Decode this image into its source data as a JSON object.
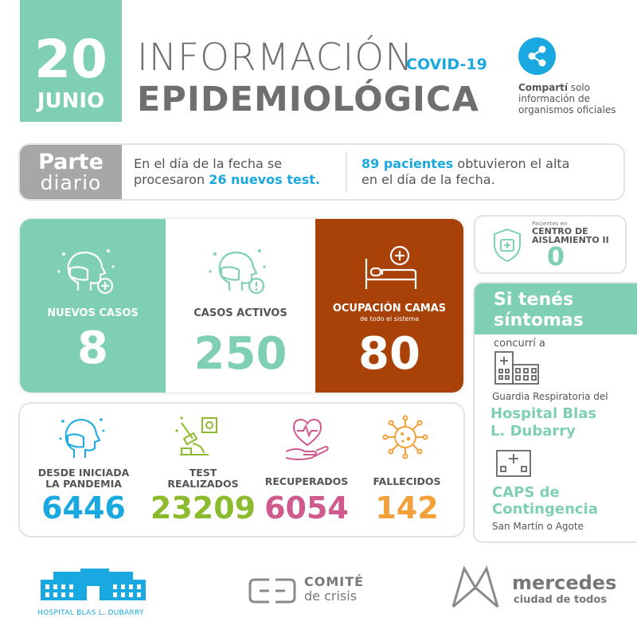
{
  "date": {
    "day": "20",
    "month": "JUNIO"
  },
  "title": {
    "line1": "INFORMACIÓN",
    "line2": "EPIDEMIOLÓGICA",
    "tag": "COVID-19"
  },
  "share": {
    "bold": "Compartí",
    "rest1": " solo",
    "rest2": "información de",
    "rest3": "organismos oficiales",
    "icon": "share-icon"
  },
  "parte": {
    "label1": "Parte",
    "label2": "diario",
    "left": {
      "pre": "En el día de la fecha se",
      "line2_pre": "procesaron ",
      "highlight": "26 nuevos test."
    },
    "right": {
      "highlight": "89 pacientes",
      "post": " obtuvieron el alta",
      "line2": "en el día de la fecha."
    }
  },
  "stats": {
    "nuevos": {
      "label": "NUEVOS  CASOS",
      "value": "8"
    },
    "activos": {
      "label": "CASOS ACTIVOS",
      "value": "250"
    },
    "camas": {
      "label": "OCUPACIÓN CAMAS",
      "sub": "de todo el sistema",
      "value": "80"
    }
  },
  "aislamiento": {
    "small": "Pacientes en",
    "title1": "CENTRO DE",
    "title2": "AISLAMIENTO II",
    "value": "0"
  },
  "sintomas": {
    "title1": "Si tenés",
    "title2": "síntomas",
    "concurri": "concurrí a",
    "guardia": "Guardia Respiratoria del",
    "hospital1": "Hospital Blas",
    "hospital2": "L. Dubarry",
    "caps1": "CAPS de",
    "caps2": "Contingencia",
    "direccion": "San Martín o Agote"
  },
  "totals": {
    "pandemia": {
      "label1": "DESDE INICIADA",
      "label2": "LA PANDEMIA",
      "value": "6446"
    },
    "test": {
      "label1": "TEST",
      "label2": "REALIZADOS",
      "value": "23209"
    },
    "recuperados": {
      "label": "RECUPERADOS",
      "value": "6054"
    },
    "fallecidos": {
      "label": "FALLECIDOS",
      "value": "142"
    }
  },
  "footer": {
    "hospital": "HOSPITAL BLAS L. DUBARRY",
    "comite1": "COMITÉ",
    "comite2": "de crisis",
    "mercedes1": "mercedes",
    "mercedes2": "ciudad de todos"
  },
  "colors": {
    "teal": "#7fcfb5",
    "blue": "#1aa8e0",
    "rust": "#a84208",
    "green": "#8dbb2e",
    "magenta": "#d05a8e",
    "orange": "#f3a13a",
    "gray": "#6f6f6f"
  }
}
